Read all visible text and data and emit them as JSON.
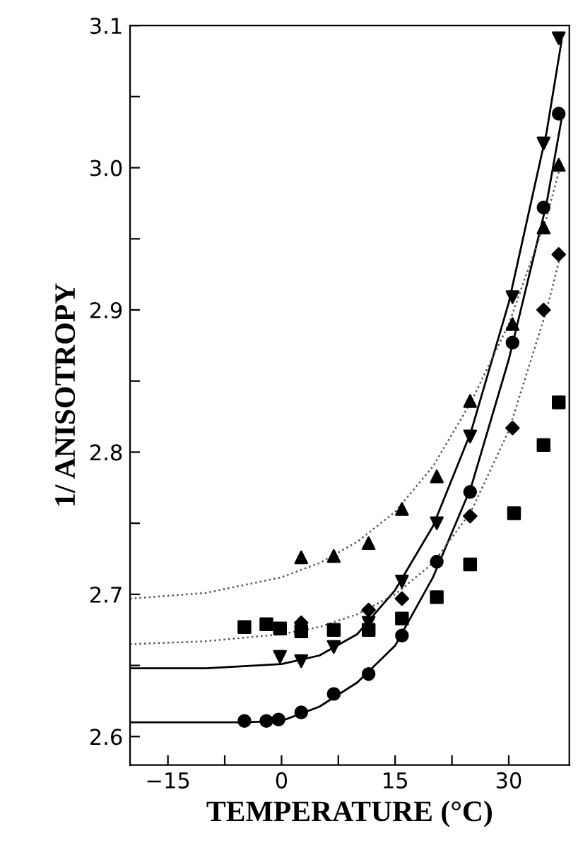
{
  "chart_data": {
    "type": "scatter",
    "xlabel": "TEMPERATURE (°C)",
    "ylabel": "1/ ANISOTROPY",
    "xlim": [
      -20,
      38
    ],
    "ylim": [
      2.58,
      3.1
    ],
    "xticks": [
      {
        "value": -15,
        "label": "−15"
      },
      {
        "value": -7.5,
        "label": null
      },
      0,
      {
        "value": 7.5,
        "label": null
      },
      15,
      {
        "value": 22.5,
        "label": null
      },
      30
    ],
    "yticks": [
      2.6,
      {
        "value": 2.65,
        "label": null
      },
      2.7,
      {
        "value": 2.75,
        "label": null
      },
      2.8,
      {
        "value": 2.85,
        "label": null
      },
      2.9,
      {
        "value": 2.95,
        "label": null
      },
      {
        "value": 3.0,
        "label": "3.0"
      },
      {
        "value": 3.05,
        "label": null
      },
      3.1
    ],
    "grid": false,
    "legend": false,
    "series": [
      {
        "marker": "circle",
        "color": "#000000",
        "x": [
          -4.9,
          -2.0,
          -0.4,
          2.6,
          6.9,
          11.5,
          15.9,
          20.5,
          24.9,
          30.5,
          34.6,
          36.6
        ],
        "values": [
          2.611,
          2.611,
          2.612,
          2.617,
          2.63,
          2.644,
          2.671,
          2.723,
          2.772,
          2.877,
          2.972,
          3.038
        ]
      },
      {
        "marker": "triangle-down",
        "color": "#000000",
        "x": [
          -0.2,
          2.6,
          6.9,
          11.5,
          15.9,
          20.5,
          24.9,
          30.5,
          34.6,
          36.6
        ],
        "values": [
          2.656,
          2.653,
          2.663,
          2.68,
          2.709,
          2.75,
          2.811,
          2.909,
          3.017,
          3.091
        ]
      },
      {
        "marker": "triangle",
        "color": "#000000",
        "x": [
          2.6,
          6.9,
          11.5,
          15.9,
          20.5,
          24.9,
          30.5,
          34.6,
          36.6
        ],
        "values": [
          2.726,
          2.727,
          2.736,
          2.76,
          2.783,
          2.836,
          2.89,
          2.958,
          3.002
        ]
      },
      {
        "marker": "diamond",
        "color": "#000000",
        "x": [
          2.6,
          6.9,
          11.5,
          15.9,
          20.5,
          24.9,
          30.5,
          34.6,
          36.6
        ],
        "values": [
          2.68,
          null,
          2.689,
          2.697,
          null,
          2.755,
          2.817,
          2.9,
          2.939
        ]
      },
      {
        "marker": "square",
        "color": "#000000",
        "x": [
          -4.9,
          -2.0,
          -0.2,
          2.6,
          6.9,
          11.5,
          15.9,
          20.5,
          24.9,
          30.7,
          34.6,
          36.6
        ],
        "values": [
          2.677,
          2.679,
          2.676,
          2.674,
          2.675,
          2.675,
          2.683,
          2.698,
          2.721,
          2.757,
          2.805,
          2.835
        ]
      },
      {
        "type": "line",
        "marker": "none",
        "line_style": "solid",
        "color": "#000000",
        "x": [
          -20,
          -10,
          -5,
          0,
          5,
          10,
          15,
          20,
          25,
          30,
          35,
          37
        ],
        "values": [
          2.61,
          2.61,
          2.61,
          2.611,
          2.621,
          2.638,
          2.664,
          2.712,
          2.775,
          2.865,
          2.975,
          3.035
        ]
      },
      {
        "type": "line",
        "marker": "none",
        "line_style": "solid",
        "color": "#000000",
        "x": [
          -20,
          -10,
          0,
          5,
          10,
          15,
          20,
          25,
          30,
          35,
          37
        ],
        "values": [
          2.648,
          2.648,
          2.651,
          2.657,
          2.672,
          2.703,
          2.748,
          2.814,
          2.905,
          3.025,
          3.09
        ]
      },
      {
        "type": "line",
        "marker": "none",
        "line_style": "dotted",
        "color": "#555555",
        "x": [
          -20,
          -10,
          0,
          5,
          10,
          15,
          20,
          25,
          30,
          35,
          37
        ],
        "values": [
          2.697,
          2.701,
          2.712,
          2.722,
          2.737,
          2.758,
          2.79,
          2.835,
          2.89,
          2.965,
          3.005
        ]
      },
      {
        "type": "line",
        "marker": "none",
        "line_style": "dotted",
        "color": "#555555",
        "x": [
          -20,
          -10,
          0,
          5,
          10,
          15,
          20,
          25,
          30,
          35,
          37
        ],
        "values": [
          2.665,
          2.667,
          2.672,
          2.677,
          2.686,
          2.7,
          2.722,
          2.758,
          2.815,
          2.9,
          2.942
        ]
      }
    ]
  }
}
